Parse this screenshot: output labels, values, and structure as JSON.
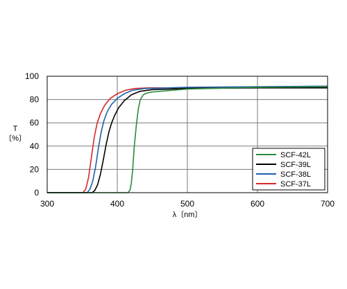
{
  "chart_data": {
    "type": "line",
    "title": "",
    "xlabel": "λ〔nm〕",
    "ylabel_lines": [
      "T",
      "〔%〕"
    ],
    "xlim": [
      300,
      700
    ],
    "ylim": [
      0,
      100
    ],
    "xticks": [
      300,
      400,
      500,
      600,
      700
    ],
    "yticks": [
      0,
      20,
      40,
      60,
      80,
      100
    ],
    "grid": true,
    "legend_position": "lower-right",
    "series": [
      {
        "name": "SCF-42L",
        "color": "#2a8a3e",
        "points": [
          [
            300,
            0
          ],
          [
            415,
            0
          ],
          [
            418,
            2
          ],
          [
            420,
            8
          ],
          [
            422,
            20
          ],
          [
            424,
            38
          ],
          [
            427,
            57
          ],
          [
            430,
            72
          ],
          [
            433,
            80
          ],
          [
            437,
            84
          ],
          [
            442,
            85.5
          ],
          [
            450,
            86.5
          ],
          [
            500,
            89
          ],
          [
            600,
            90.5
          ],
          [
            700,
            91
          ]
        ]
      },
      {
        "name": "SCF-39L",
        "color": "#000000",
        "points": [
          [
            300,
            0
          ],
          [
            364,
            0
          ],
          [
            368,
            2
          ],
          [
            372,
            7
          ],
          [
            376,
            16
          ],
          [
            380,
            28
          ],
          [
            384,
            41
          ],
          [
            388,
            52
          ],
          [
            392,
            60
          ],
          [
            396,
            66
          ],
          [
            402,
            73
          ],
          [
            410,
            79
          ],
          [
            420,
            84
          ],
          [
            432,
            87
          ],
          [
            450,
            88.5
          ],
          [
            500,
            89.5
          ],
          [
            600,
            90
          ],
          [
            700,
            90
          ]
        ]
      },
      {
        "name": "SCF-38L",
        "color": "#1f5faa",
        "points": [
          [
            300,
            0
          ],
          [
            357,
            0
          ],
          [
            361,
            3
          ],
          [
            365,
            10
          ],
          [
            369,
            22
          ],
          [
            373,
            38
          ],
          [
            377,
            52
          ],
          [
            381,
            62
          ],
          [
            386,
            70
          ],
          [
            392,
            76
          ],
          [
            400,
            81
          ],
          [
            410,
            85
          ],
          [
            422,
            88
          ],
          [
            440,
            89.5
          ],
          [
            500,
            90.5
          ],
          [
            600,
            91
          ],
          [
            700,
            91.5
          ]
        ]
      },
      {
        "name": "SCF-37L",
        "color": "#d62728",
        "points": [
          [
            300,
            0
          ],
          [
            351,
            0
          ],
          [
            355,
            3
          ],
          [
            359,
            13
          ],
          [
            363,
            30
          ],
          [
            367,
            47
          ],
          [
            371,
            59
          ],
          [
            376,
            68
          ],
          [
            382,
            75
          ],
          [
            390,
            81
          ],
          [
            400,
            85
          ],
          [
            412,
            88
          ],
          [
            425,
            89.5
          ],
          [
            445,
            90
          ],
          [
            500,
            90
          ],
          [
            600,
            90.5
          ],
          [
            700,
            91
          ]
        ]
      }
    ]
  }
}
